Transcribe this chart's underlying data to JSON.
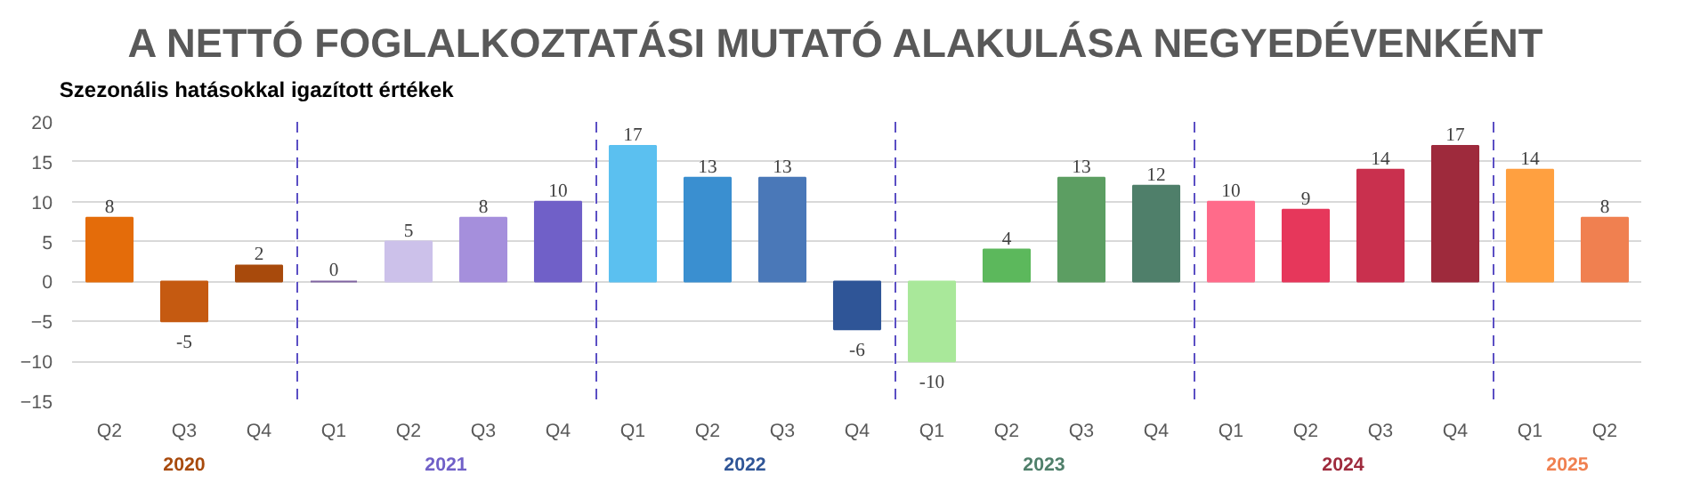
{
  "chart_data": [
    {
      "type": "bar",
      "title": "A NETTÓ FOGLALKOZTATÁSI MUTATÓ ALAKULÁSA NEGYEDÉVENKÉNT",
      "subtitle": "Szezonális hatásokkal igazított értékek",
      "xlabel": "2020",
      "categories": [
        "Q2",
        "Q3",
        "Q4"
      ],
      "values": [
        8,
        -5,
        2
      ],
      "colors": [
        "#e46c0a",
        "#c55a11",
        "#a84a0c"
      ],
      "ylim": [
        -15,
        20
      ],
      "yticks": [
        -15,
        -10,
        -5,
        0,
        5,
        10,
        15,
        20
      ],
      "grid": "y",
      "data_labels": true
    },
    {
      "type": "bar",
      "xlabel": "2021",
      "categories": [
        "Q1",
        "Q2",
        "Q3",
        "Q4"
      ],
      "values": [
        0,
        5,
        8,
        10
      ],
      "colors": [
        "#8064a2",
        "#ccc1ea",
        "#a58fdc",
        "#7060c8"
      ],
      "ylim": [
        -15,
        20
      ],
      "yticks": [
        -15,
        -10,
        -5,
        0,
        5,
        10,
        15,
        20
      ],
      "grid": "y",
      "data_labels": true,
      "tick_labels": "x"
    },
    {
      "type": "bar",
      "xlabel": "2022",
      "categories": [
        "Q1",
        "Q2",
        "Q3",
        "Q4"
      ],
      "values": [
        17,
        13,
        13,
        -6
      ],
      "colors": [
        "#5bc0f0",
        "#3a8fd0",
        "#4a78b8",
        "#2f5597"
      ],
      "ylim": [
        -15,
        20
      ],
      "yticks": [
        -15,
        -10,
        -5,
        0,
        5,
        10,
        15,
        20
      ],
      "grid": "y",
      "data_labels": true,
      "tick_labels": "x"
    },
    {
      "type": "bar",
      "xlabel": "2023",
      "categories": [
        "Q1",
        "Q2",
        "Q3",
        "Q4"
      ],
      "values": [
        -10,
        4,
        13,
        12
      ],
      "colors": [
        "#a9e89a",
        "#5cb85c",
        "#5c9e62",
        "#4f7f6a"
      ],
      "ylim": [
        -15,
        20
      ],
      "yticks": [
        -15,
        -10,
        -5,
        0,
        5,
        10,
        15,
        20
      ],
      "grid": "y",
      "data_labels": true,
      "tick_labels": "x"
    },
    {
      "type": "bar",
      "xlabel": "2024",
      "categories": [
        "Q1",
        "Q2",
        "Q3",
        "Q4"
      ],
      "values": [
        10,
        9,
        14,
        17
      ],
      "colors": [
        "#ff6b8a",
        "#e6375b",
        "#c9304e",
        "#9e2a3c"
      ],
      "ylim": [
        -15,
        20
      ],
      "yticks": [
        -15,
        -10,
        -5,
        0,
        5,
        10,
        15,
        20
      ],
      "grid": "y",
      "data_labels": true,
      "tick_labels": "x"
    },
    {
      "type": "bar",
      "xlabel": "2025",
      "categories": [
        "Q1",
        "Q2"
      ],
      "values": [
        14,
        8
      ],
      "colors": [
        "#ffa040",
        "#f08050"
      ],
      "ylim": [
        -15,
        20
      ],
      "yticks": [
        -15,
        -10,
        -5,
        0,
        5,
        10,
        15,
        20
      ],
      "grid": "y",
      "data_labels": true,
      "tick_labels": "x"
    }
  ]
}
